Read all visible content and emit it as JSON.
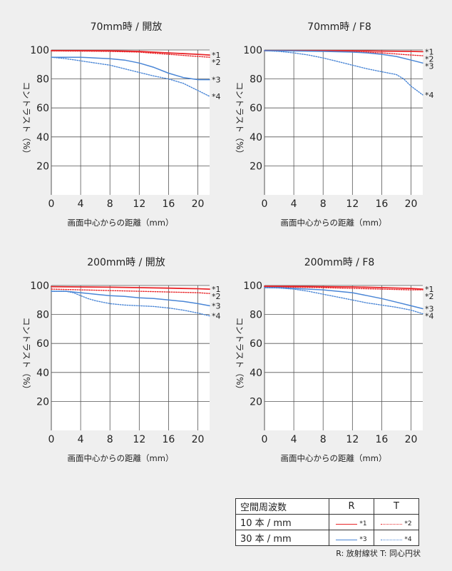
{
  "chart_data": [
    {
      "type": "line",
      "title": "70mm時 / 開放",
      "xlabel": "画面中心からの距離（mm）",
      "ylabel": "コントラスト（%）",
      "xlim": [
        0,
        21.6
      ],
      "ylim": [
        0,
        100
      ],
      "xticks": [
        0,
        4,
        8,
        12,
        16,
        20
      ],
      "yticks": [
        20,
        40,
        60,
        80,
        100
      ],
      "series": [
        {
          "name": "*1",
          "x": [
            0,
            4,
            8,
            12,
            16,
            20,
            21.6
          ],
          "y": [
            99.5,
            99.5,
            99.4,
            99.0,
            98.0,
            97.0,
            96.5
          ]
        },
        {
          "name": "*2",
          "x": [
            0,
            4,
            8,
            12,
            16,
            20,
            21.6
          ],
          "y": [
            99.3,
            99.2,
            99.0,
            98.5,
            97.0,
            95.5,
            95.0
          ]
        },
        {
          "name": "*3",
          "x": [
            0,
            2,
            4,
            6,
            8,
            10,
            12,
            14,
            16,
            18,
            20,
            21.6
          ],
          "y": [
            95.0,
            95.0,
            95.0,
            94.5,
            94.0,
            93.0,
            91.0,
            88.0,
            84.0,
            81.0,
            79.5,
            79.5
          ]
        },
        {
          "name": "*4",
          "x": [
            0,
            2,
            4,
            6,
            8,
            10,
            12,
            14,
            16,
            18,
            20,
            21.6
          ],
          "y": [
            95.0,
            94.0,
            92.5,
            91.0,
            89.5,
            87.0,
            84.5,
            82.0,
            80.0,
            77.0,
            72.0,
            68.0
          ]
        }
      ]
    },
    {
      "type": "line",
      "title": "70mm時 / F8",
      "xlabel": "画面中心からの距離（mm）",
      "ylabel": "コントラスト（%）",
      "xlim": [
        0,
        21.6
      ],
      "ylim": [
        0,
        100
      ],
      "xticks": [
        0,
        4,
        8,
        12,
        16,
        20
      ],
      "yticks": [
        20,
        40,
        60,
        80,
        100
      ],
      "series": [
        {
          "name": "*1",
          "x": [
            0,
            4,
            8,
            12,
            16,
            20,
            21.6
          ],
          "y": [
            99.5,
            99.5,
            99.5,
            99.4,
            99.2,
            99.0,
            98.8
          ]
        },
        {
          "name": "*2",
          "x": [
            0,
            4,
            8,
            12,
            16,
            20,
            21.6
          ],
          "y": [
            99.5,
            99.4,
            99.2,
            98.8,
            98.0,
            96.5,
            96.0
          ]
        },
        {
          "name": "*3",
          "x": [
            0,
            4,
            8,
            12,
            14,
            16,
            18,
            20,
            21.6
          ],
          "y": [
            99.5,
            99.3,
            99.0,
            98.5,
            98.0,
            97.0,
            95.5,
            93.0,
            91.0
          ]
        },
        {
          "name": "*4",
          "x": [
            0,
            2,
            4,
            6,
            8,
            10,
            12,
            14,
            16,
            18,
            19,
            20,
            21.6
          ],
          "y": [
            99.5,
            99.0,
            98.0,
            96.5,
            94.5,
            92.0,
            89.5,
            87.0,
            85.0,
            83.0,
            80.0,
            75.0,
            69.0
          ]
        }
      ]
    },
    {
      "type": "line",
      "title": "200mm時 / 開放",
      "xlabel": "画面中心からの距離（mm）",
      "ylabel": "コントラスト（%）",
      "xlim": [
        0,
        21.6
      ],
      "ylim": [
        0,
        100
      ],
      "xticks": [
        0,
        4,
        8,
        12,
        16,
        20
      ],
      "yticks": [
        20,
        40,
        60,
        80,
        100
      ],
      "series": [
        {
          "name": "*1",
          "x": [
            0,
            4,
            8,
            12,
            16,
            20,
            21.6
          ],
          "y": [
            99.2,
            99.0,
            98.8,
            98.5,
            98.2,
            97.8,
            97.5
          ]
        },
        {
          "name": "*2",
          "x": [
            0,
            4,
            8,
            12,
            16,
            20,
            21.6
          ],
          "y": [
            97.5,
            97.0,
            96.5,
            96.0,
            95.5,
            95.0,
            94.5
          ]
        },
        {
          "name": "*3",
          "x": [
            0,
            2,
            4,
            6,
            8,
            10,
            12,
            14,
            16,
            18,
            20,
            21.6
          ],
          "y": [
            96.0,
            96.0,
            95.0,
            94.0,
            93.0,
            92.5,
            91.5,
            91.0,
            90.0,
            89.0,
            87.5,
            86.0
          ]
        },
        {
          "name": "*4",
          "x": [
            0,
            2,
            3,
            4,
            5,
            6,
            8,
            10,
            12,
            14,
            16,
            18,
            20,
            21.6
          ],
          "y": [
            96.0,
            96.0,
            95.0,
            93.0,
            91.0,
            89.5,
            87.5,
            86.5,
            86.0,
            85.5,
            84.5,
            83.0,
            81.0,
            79.0
          ]
        }
      ]
    },
    {
      "type": "line",
      "title": "200mm時 / F8",
      "xlabel": "画面中心からの距離（mm）",
      "ylabel": "コントラスト（%）",
      "xlim": [
        0,
        21.6
      ],
      "ylim": [
        0,
        100
      ],
      "xticks": [
        0,
        4,
        8,
        12,
        16,
        20
      ],
      "yticks": [
        20,
        40,
        60,
        80,
        100
      ],
      "series": [
        {
          "name": "*1",
          "x": [
            0,
            4,
            8,
            12,
            16,
            20,
            21.6
          ],
          "y": [
            99.5,
            99.4,
            99.2,
            99.0,
            98.5,
            98.0,
            97.5
          ]
        },
        {
          "name": "*2",
          "x": [
            0,
            4,
            8,
            12,
            16,
            20,
            21.6
          ],
          "y": [
            99.0,
            98.8,
            98.5,
            98.0,
            97.5,
            97.0,
            97.0
          ]
        },
        {
          "name": "*3",
          "x": [
            0,
            2,
            4,
            6,
            8,
            10,
            12,
            14,
            16,
            18,
            20,
            21.6
          ],
          "y": [
            98.5,
            98.5,
            98.0,
            97.5,
            97.0,
            96.0,
            95.0,
            93.0,
            91.0,
            88.5,
            86.0,
            84.0
          ]
        },
        {
          "name": "*4",
          "x": [
            0,
            2,
            4,
            6,
            8,
            10,
            12,
            14,
            16,
            18,
            20,
            21.6
          ],
          "y": [
            98.5,
            98.3,
            97.5,
            96.0,
            94.0,
            92.0,
            90.0,
            88.0,
            86.5,
            85.0,
            83.0,
            80.5
          ]
        }
      ]
    }
  ],
  "legend": {
    "header": {
      "label": "空間周波数",
      "r": "R",
      "t": "T"
    },
    "rows": [
      {
        "label": "10 本 / mm",
        "r_mark": "*1",
        "t_mark": "*2"
      },
      {
        "label": "30 本 / mm",
        "r_mark": "*3",
        "t_mark": "*4"
      }
    ],
    "note": "R: 放射線状  T: 同心円状"
  },
  "colors": {
    "red": "#e8262a",
    "blue": "#4a86d6",
    "grid": "#555555",
    "plot_bg": "#ffffff",
    "page_bg": "#efefef"
  }
}
